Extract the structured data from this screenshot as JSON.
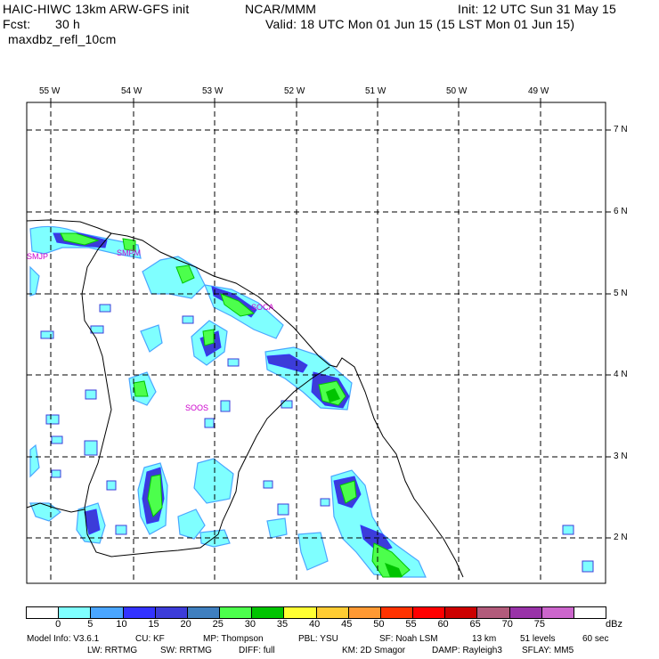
{
  "header": {
    "model": "HAIC-HIWC 13km ARW-GFS init",
    "org": "NCAR/MMM",
    "init": "Init: 12 UTC Sun 31 May 15",
    "fcst_label": "Fcst:",
    "fcst_value": "30 h",
    "valid": "Valid: 18 UTC Mon 01 Jun 15 (15 LST Mon 01 Jun 15)",
    "field": "maxdbz_refl_10cm"
  },
  "map": {
    "lon_labels": [
      "55 W",
      "54 W",
      "53 W",
      "52 W",
      "51 W",
      "50 W",
      "49 W"
    ],
    "lat_labels": [
      "7 N",
      "6 N",
      "5 N",
      "4 N",
      "3 N",
      "2 N"
    ],
    "stations": [
      "SMJP",
      "SMPM",
      "SOCA",
      "SOOS"
    ],
    "colors": {
      "coast": "#000000",
      "grid": "#000000",
      "station": "#cc00cc"
    }
  },
  "colorbar": {
    "ticks": [
      "0",
      "5",
      "10",
      "15",
      "20",
      "25",
      "30",
      "35",
      "40",
      "45",
      "50",
      "55",
      "60",
      "65",
      "70",
      "75"
    ],
    "unit": "dBz",
    "colors": [
      "#ffffff",
      "#7fffff",
      "#4aa6ff",
      "#3333ff",
      "#3c3cd9",
      "#3f7fbf",
      "#4cff4c",
      "#00c400",
      "#ffff33",
      "#ffcc33",
      "#ff9933",
      "#ff3300",
      "#ff0000",
      "#cc0000",
      "#b25b7b",
      "#9933a8",
      "#cc66cc",
      "#ffffff"
    ]
  },
  "footer": {
    "line1": [
      "Model Info: V3.6.1",
      "CU: KF",
      "MP: Thompson",
      "PBL: YSU",
      "SF: Noah LSM",
      "13 km",
      "51 levels",
      "60 sec"
    ],
    "line2": [
      "LW: RRTMG",
      "SW: RRTMG",
      "DIFF: full",
      "KM: 2D Smagor",
      "DAMP: Rayleigh3",
      "SFLAY: MM5"
    ]
  }
}
